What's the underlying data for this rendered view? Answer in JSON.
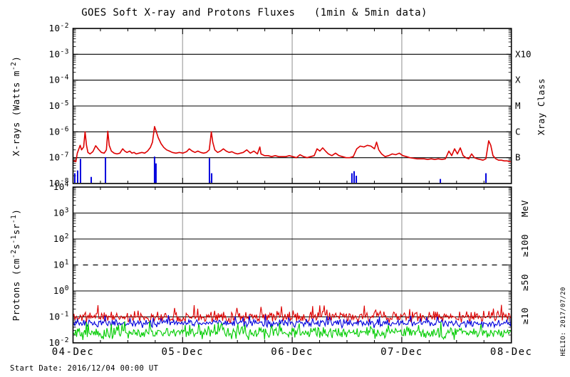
{
  "title": "GOES Soft X-ray and Protons Fluxes   (1min & 5min data)",
  "footer": {
    "start_date": "Start Date: 2016/12/04 00:00 UT",
    "credit": "HELIO: 2017/07/20"
  },
  "grid_color": "#b4b4b4",
  "chart_data": [
    {
      "type": "line",
      "panel": "xray",
      "ylabel_parts": [
        [
          "X-rays (Watts m",
          0
        ],
        [
          "-2",
          1
        ],
        [
          ")",
          0
        ]
      ],
      "y_axis": {
        "scale": "log",
        "min": 1e-08,
        "max": 0.01,
        "tick_exponents": [
          -2,
          -3,
          -4,
          -5,
          -6,
          -7,
          -8
        ]
      },
      "x_axis": {
        "tick_labels": [
          "04-Dec",
          "05-Dec",
          "06-Dec",
          "07-Dec",
          "08-Dec"
        ],
        "range_days": [
          0,
          4
        ],
        "minor_step_days": 0.25
      },
      "right_axis": {
        "title": "Xray Class",
        "class_labels": [
          {
            "text": "X10",
            "flux": 0.001
          },
          {
            "text": "X",
            "flux": 0.0001
          },
          {
            "text": "M",
            "flux": 1e-05
          },
          {
            "text": "C",
            "flux": 1e-06
          },
          {
            "text": "B",
            "flux": 1e-07
          }
        ]
      },
      "hlines_solid_exp": [
        -3,
        -4,
        -5,
        -6,
        -7
      ],
      "hlines_dashed_exp": [],
      "vlines_days": [
        1,
        2,
        3
      ],
      "series": [
        {
          "id": "xray_flux_red",
          "color": "#dd0000",
          "style": "curve",
          "points": [
            [
              0.0,
              8e-08
            ],
            [
              0.026,
              7e-08
            ],
            [
              0.039,
              1.5e-07
            ],
            [
              0.065,
              3e-07
            ],
            [
              0.078,
              2e-07
            ],
            [
              0.097,
              2.6e-07
            ],
            [
              0.11,
              1e-06
            ],
            [
              0.123,
              3e-07
            ],
            [
              0.136,
              1.6e-07
            ],
            [
              0.155,
              1.4e-07
            ],
            [
              0.181,
              1.7e-07
            ],
            [
              0.207,
              2.9e-07
            ],
            [
              0.233,
              2.1e-07
            ],
            [
              0.259,
              1.6e-07
            ],
            [
              0.285,
              1.5e-07
            ],
            [
              0.304,
              2e-07
            ],
            [
              0.317,
              1.05e-06
            ],
            [
              0.33,
              3e-07
            ],
            [
              0.35,
              1.8e-07
            ],
            [
              0.375,
              1.5e-07
            ],
            [
              0.401,
              1.4e-07
            ],
            [
              0.427,
              1.5e-07
            ],
            [
              0.453,
              2.2e-07
            ],
            [
              0.472,
              1.8e-07
            ],
            [
              0.492,
              1.6e-07
            ],
            [
              0.518,
              1.8e-07
            ],
            [
              0.537,
              1.5e-07
            ],
            [
              0.557,
              1.6e-07
            ],
            [
              0.576,
              1.4e-07
            ],
            [
              0.602,
              1.5e-07
            ],
            [
              0.628,
              1.6e-07
            ],
            [
              0.654,
              1.5e-07
            ],
            [
              0.68,
              1.8e-07
            ],
            [
              0.706,
              2.5e-07
            ],
            [
              0.725,
              4e-07
            ],
            [
              0.744,
              1.6e-06
            ],
            [
              0.757,
              1.1e-06
            ],
            [
              0.777,
              6e-07
            ],
            [
              0.803,
              3.5e-07
            ],
            [
              0.828,
              2.5e-07
            ],
            [
              0.854,
              2e-07
            ],
            [
              0.88,
              1.8e-07
            ],
            [
              0.906,
              1.6e-07
            ],
            [
              0.939,
              1.5e-07
            ],
            [
              0.971,
              1.6e-07
            ],
            [
              1.003,
              1.5e-07
            ],
            [
              1.036,
              1.7e-07
            ],
            [
              1.061,
              2.2e-07
            ],
            [
              1.087,
              1.8e-07
            ],
            [
              1.113,
              1.6e-07
            ],
            [
              1.139,
              1.8e-07
            ],
            [
              1.165,
              1.6e-07
            ],
            [
              1.191,
              1.5e-07
            ],
            [
              1.217,
              1.6e-07
            ],
            [
              1.243,
              2e-07
            ],
            [
              1.262,
              1e-06
            ],
            [
              1.275,
              4e-07
            ],
            [
              1.294,
              2e-07
            ],
            [
              1.32,
              1.6e-07
            ],
            [
              1.346,
              1.8e-07
            ],
            [
              1.372,
              2.2e-07
            ],
            [
              1.398,
              1.8e-07
            ],
            [
              1.424,
              1.6e-07
            ],
            [
              1.45,
              1.7e-07
            ],
            [
              1.476,
              1.5e-07
            ],
            [
              1.502,
              1.4e-07
            ],
            [
              1.528,
              1.5e-07
            ],
            [
              1.553,
              1.6e-07
            ],
            [
              1.586,
              2e-07
            ],
            [
              1.618,
              1.5e-07
            ],
            [
              1.65,
              1.8e-07
            ],
            [
              1.683,
              1.4e-07
            ],
            [
              1.705,
              2.6e-07
            ],
            [
              1.715,
              1.4e-07
            ],
            [
              1.748,
              1.2e-07
            ],
            [
              1.78,
              1.2e-07
            ],
            [
              1.812,
              1.1e-07
            ],
            [
              1.845,
              1.2e-07
            ],
            [
              1.877,
              1.1e-07
            ],
            [
              1.909,
              1.1e-07
            ],
            [
              1.942,
              1.1e-07
            ],
            [
              1.974,
              1.2e-07
            ],
            [
              2.006,
              1.1e-07
            ],
            [
              2.039,
              1e-07
            ],
            [
              2.071,
              1.3e-07
            ],
            [
              2.104,
              1.1e-07
            ],
            [
              2.136,
              1e-07
            ],
            [
              2.168,
              1.1e-07
            ],
            [
              2.201,
              1.2e-07
            ],
            [
              2.227,
              2.2e-07
            ],
            [
              2.252,
              1.8e-07
            ],
            [
              2.278,
              2.4e-07
            ],
            [
              2.304,
              1.8e-07
            ],
            [
              2.33,
              1.4e-07
            ],
            [
              2.362,
              1.2e-07
            ],
            [
              2.395,
              1.5e-07
            ],
            [
              2.427,
              1.2e-07
            ],
            [
              2.459,
              1.1e-07
            ],
            [
              2.492,
              1e-07
            ],
            [
              2.524,
              1e-07
            ],
            [
              2.557,
              1.1e-07
            ],
            [
              2.589,
              2.2e-07
            ],
            [
              2.621,
              2.8e-07
            ],
            [
              2.654,
              2.6e-07
            ],
            [
              2.686,
              3e-07
            ],
            [
              2.718,
              2.8e-07
            ],
            [
              2.751,
              2.2e-07
            ],
            [
              2.77,
              4e-07
            ],
            [
              2.79,
              2e-07
            ],
            [
              2.816,
              1.4e-07
            ],
            [
              2.848,
              1.1e-07
            ],
            [
              2.88,
              1.2e-07
            ],
            [
              2.913,
              1.4e-07
            ],
            [
              2.945,
              1.3e-07
            ],
            [
              2.977,
              1.5e-07
            ],
            [
              3.01,
              1.2e-07
            ],
            [
              3.042,
              1.1e-07
            ],
            [
              3.074,
              1e-07
            ],
            [
              3.107,
              9.5e-08
            ],
            [
              3.139,
              9e-08
            ],
            [
              3.172,
              9e-08
            ],
            [
              3.204,
              9e-08
            ],
            [
              3.236,
              8.5e-08
            ],
            [
              3.269,
              9e-08
            ],
            [
              3.301,
              8.5e-08
            ],
            [
              3.333,
              9e-08
            ],
            [
              3.366,
              8.5e-08
            ],
            [
              3.398,
              9e-08
            ],
            [
              3.43,
              1.8e-07
            ],
            [
              3.456,
              1.2e-07
            ],
            [
              3.482,
              2.2e-07
            ],
            [
              3.508,
              1.4e-07
            ],
            [
              3.534,
              2.4e-07
            ],
            [
              3.56,
              1.2e-07
            ],
            [
              3.585,
              1e-07
            ],
            [
              3.611,
              9e-08
            ],
            [
              3.637,
              1.4e-07
            ],
            [
              3.663,
              1e-07
            ],
            [
              3.689,
              9e-08
            ],
            [
              3.715,
              8.5e-08
            ],
            [
              3.741,
              8e-08
            ],
            [
              3.767,
              9e-08
            ],
            [
              3.793,
              4.5e-07
            ],
            [
              3.812,
              3e-07
            ],
            [
              3.832,
              1.2e-07
            ],
            [
              3.858,
              9e-08
            ],
            [
              3.883,
              8e-08
            ],
            [
              3.909,
              8e-08
            ],
            [
              3.935,
              7.5e-08
            ],
            [
              3.961,
              7.5e-08
            ],
            [
              3.987,
              7e-08
            ],
            [
              4.0,
              7e-08
            ]
          ]
        },
        {
          "id": "xray_flux_blue",
          "color": "#0000dd",
          "style": "spikes",
          "baseline": 1e-08,
          "spikes": [
            [
              0.016,
              2.5e-08
            ],
            [
              0.042,
              3.2e-08
            ],
            [
              0.068,
              9e-08
            ],
            [
              0.166,
              1.8e-08
            ],
            [
              0.296,
              1.05e-07
            ],
            [
              0.744,
              1.1e-07
            ],
            [
              0.757,
              6e-08
            ],
            [
              1.245,
              9.5e-08
            ],
            [
              1.265,
              2.5e-08
            ],
            [
              2.545,
              2.5e-08
            ],
            [
              2.565,
              3e-08
            ],
            [
              2.585,
              2e-08
            ],
            [
              3.352,
              1.5e-08
            ],
            [
              3.768,
              2.5e-08
            ]
          ]
        }
      ]
    },
    {
      "type": "line",
      "panel": "protons",
      "ylabel_parts": [
        [
          "Protons (cm",
          0
        ],
        [
          "-2",
          1
        ],
        [
          "s",
          0
        ],
        [
          "-1",
          1
        ],
        [
          "sr",
          0
        ],
        [
          "-1",
          1
        ],
        [
          ")",
          0
        ]
      ],
      "y_axis": {
        "scale": "log",
        "min": 0.01,
        "max": 10000.0,
        "tick_exponents": [
          4,
          3,
          2,
          1,
          0,
          -1,
          -2
        ]
      },
      "x_axis": {
        "tick_labels": [
          "04-Dec",
          "05-Dec",
          "06-Dec",
          "07-Dec",
          "08-Dec"
        ],
        "range_days": [
          0,
          4
        ],
        "minor_step_days": 0.25
      },
      "right_axis": {
        "unit": "MeV",
        "threshold_labels": [
          {
            "text": "≥100",
            "color": "#00cc00"
          },
          {
            "text": "≥50",
            "color": "#0000dd"
          },
          {
            "text": "≥10",
            "color": "#dd0000"
          }
        ]
      },
      "hlines_solid_exp": [
        3,
        2,
        0,
        -1
      ],
      "hlines_dashed_exp": [
        1
      ],
      "vlines_days": [
        1,
        2,
        3
      ],
      "series": [
        {
          "id": "protons_ge10",
          "label": "≥10",
          "color": "#dd0000",
          "style": "noise",
          "mean": 0.1,
          "min": 0.05,
          "max": 0.3
        },
        {
          "id": "protons_ge50",
          "label": "≥50",
          "color": "#0000dd",
          "style": "noise",
          "mean": 0.058,
          "min": 0.032,
          "max": 0.12
        },
        {
          "id": "protons_ge100",
          "label": "≥100",
          "color": "#00cc00",
          "style": "noise",
          "mean": 0.025,
          "min": 0.01,
          "max": 0.07
        }
      ]
    }
  ]
}
